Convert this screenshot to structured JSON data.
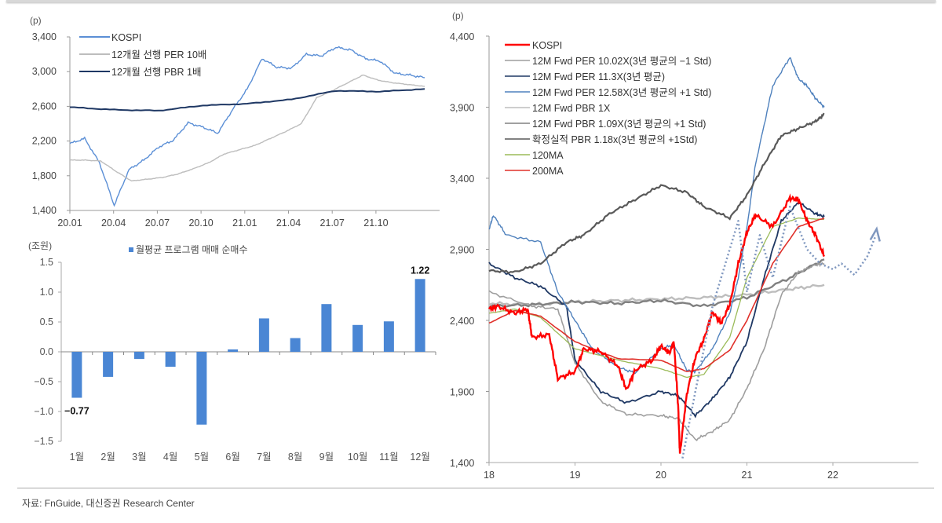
{
  "source": "자료: FnGuide, 대신증권 Research Center",
  "chart_data": [
    {
      "type": "line",
      "unit_label": "(p)",
      "title": "",
      "xlabel": "",
      "ylabel": "(p)",
      "ylim": [
        1400,
        3400
      ],
      "yticks": [
        "1,400",
        "1,800",
        "2,200",
        "2,600",
        "3,000",
        "3,400"
      ],
      "xticks": [
        "20.01",
        "20.04",
        "20.07",
        "20.10",
        "21.01",
        "21.04",
        "21.07",
        "21.10"
      ],
      "legend": [
        "KOSPI",
        "12개월 선행 PER 10배",
        "12개월 선행 PBR 1배"
      ],
      "legend_position": "upper-left",
      "series": [
        {
          "name": "KOSPI",
          "color": "#5b8fd6",
          "x": [
            "20.01",
            "20.02",
            "20.03",
            "20.03m",
            "20.04",
            "20.05",
            "20.06",
            "20.07",
            "20.08",
            "20.09",
            "20.10",
            "20.11",
            "20.12",
            "21.01",
            "21.02",
            "21.03",
            "21.04",
            "21.05",
            "21.06",
            "21.07",
            "21.08",
            "21.09",
            "21.10",
            "21.11",
            "21.12"
          ],
          "values": [
            2170,
            2230,
            1950,
            1460,
            1870,
            1980,
            2130,
            2210,
            2410,
            2360,
            2290,
            2560,
            2800,
            3150,
            3050,
            3040,
            3200,
            3180,
            3280,
            3250,
            3150,
            3120,
            2980,
            2960,
            2930
          ]
        },
        {
          "name": "12개월 선행 PER 10배",
          "color": "#bdbdbd",
          "x": [
            "20.01",
            "20.02",
            "20.03",
            "20.04",
            "20.05",
            "20.06",
            "20.07",
            "20.08",
            "20.09",
            "20.10",
            "20.11",
            "20.12",
            "21.01",
            "21.02",
            "21.03",
            "21.04",
            "21.05",
            "21.06",
            "21.07",
            "21.08",
            "21.09",
            "21.10",
            "21.11",
            "21.12"
          ],
          "values": [
            1980,
            1980,
            1970,
            1850,
            1740,
            1760,
            1780,
            1820,
            1880,
            1950,
            2050,
            2100,
            2150,
            2230,
            2310,
            2400,
            2700,
            2780,
            2870,
            2960,
            2900,
            2870,
            2850,
            2830
          ]
        },
        {
          "name": "12개월 선행 PBR 1배",
          "color": "#1f3864",
          "x": [
            "20.01",
            "20.04",
            "20.07",
            "20.10",
            "21.01",
            "21.04",
            "21.07",
            "21.10",
            "21.12"
          ],
          "values": [
            2590,
            2560,
            2550,
            2610,
            2630,
            2680,
            2780,
            2770,
            2800
          ]
        }
      ]
    },
    {
      "type": "bar",
      "unit_label": "(조원)",
      "title": "",
      "xlabel": "",
      "ylabel": "(조원)",
      "ylim": [
        -1.5,
        1.5
      ],
      "yticks": [
        "1.5",
        "1.0",
        "0.5",
        "0.0",
        "−0.5",
        "−1.0",
        "−1.5"
      ],
      "legend": [
        "월평균 프로그램 매매 순매수"
      ],
      "legend_position": "top",
      "categories": [
        "1월",
        "2월",
        "3월",
        "4월",
        "5월",
        "6월",
        "7월",
        "8월",
        "9월",
        "10월",
        "11월",
        "12월"
      ],
      "series": [
        {
          "name": "월평균 프로그램 매매 순매수",
          "color": "#4a86d4",
          "values": [
            -0.77,
            -0.42,
            -0.12,
            -0.25,
            -1.22,
            0.04,
            0.56,
            0.23,
            0.8,
            0.45,
            0.51,
            1.22
          ]
        }
      ],
      "annotations": [
        {
          "category": "1월",
          "text": "−0.77"
        },
        {
          "category": "12월",
          "text": "1.22"
        }
      ]
    },
    {
      "type": "line",
      "unit_label": "(p)",
      "title": "",
      "xlabel": "",
      "ylabel": "(p)",
      "ylim": [
        1400,
        4400
      ],
      "yticks": [
        "1,400",
        "1,900",
        "2,400",
        "2,900",
        "3,400",
        "3,900",
        "4,400"
      ],
      "xticks": [
        "18",
        "19",
        "20",
        "21",
        "22"
      ],
      "legend_position": "upper-left",
      "legend": [
        "KOSPI",
        "12M Fwd PER 10.02X(3년 평균의 −1 Std)",
        "12M Fwd PER 11.3X(3년 평균)",
        "12M Fwd PER 12.58X(3년 평균의 +1 Std)",
        "12M Fwd PBR 1X",
        "12M Fwd PBR 1.09X(3년 평균의 +1 Std)",
        "확정실적 PBR 1.18x(3년 평균의 +1Std)",
        "120MA",
        "200MA"
      ],
      "series": [
        {
          "name": "KOSPI",
          "color": "#ff0000",
          "x": [
            18.0,
            18.1,
            18.3,
            18.45,
            18.5,
            18.7,
            18.8,
            19.0,
            19.1,
            19.3,
            19.5,
            19.6,
            19.7,
            19.9,
            20.0,
            20.1,
            20.15,
            20.2,
            20.22,
            20.3,
            20.4,
            20.5,
            20.6,
            20.7,
            20.8,
            20.9,
            21.0,
            21.1,
            21.3,
            21.5,
            21.6,
            21.7,
            21.8,
            21.9
          ],
          "values": [
            2480,
            2500,
            2450,
            2480,
            2280,
            2300,
            1990,
            2040,
            2200,
            2180,
            2080,
            1910,
            2050,
            2120,
            2220,
            2170,
            2250,
            1800,
            1460,
            1880,
            2140,
            2270,
            2460,
            2380,
            2510,
            2800,
            3020,
            3140,
            3060,
            3260,
            3250,
            3100,
            3000,
            2850
          ]
        },
        {
          "name": "12M Fwd PER 10.02X(3년 평균의 −1 Std)",
          "color": "#9e9e9e",
          "x": [
            18.0,
            18.5,
            18.8,
            19.0,
            19.3,
            19.6,
            20.0,
            20.2,
            20.4,
            20.6,
            20.8,
            21.0,
            21.2,
            21.4,
            21.6,
            21.8,
            21.9
          ],
          "values": [
            2600,
            2500,
            2480,
            2100,
            1830,
            1740,
            1730,
            1710,
            1560,
            1620,
            1700,
            1920,
            2200,
            2580,
            2740,
            2790,
            2800
          ]
        },
        {
          "name": "12M Fwd PER 11.3X(3년 평균)",
          "color": "#1f3864",
          "x": [
            18.0,
            18.3,
            18.6,
            18.9,
            19.0,
            19.3,
            19.6,
            20.0,
            20.2,
            20.4,
            20.6,
            20.8,
            21.0,
            21.2,
            21.4,
            21.6,
            21.8,
            21.9
          ],
          "values": [
            2800,
            2700,
            2640,
            2500,
            2120,
            1900,
            1820,
            1900,
            1870,
            1730,
            1850,
            2000,
            2250,
            2700,
            3100,
            3230,
            3150,
            3130
          ]
        },
        {
          "name": "12M Fwd PER 12.58X(3년 평균의 +1 Std)",
          "color": "#4f81bd",
          "x": [
            18.0,
            18.05,
            18.2,
            18.6,
            18.8,
            19.0,
            19.2,
            19.5,
            19.7,
            20.0,
            20.15,
            20.3,
            20.4,
            20.6,
            20.8,
            20.9,
            21.0,
            21.1,
            21.3,
            21.5,
            21.6,
            21.7,
            21.8,
            21.9
          ],
          "values": [
            3040,
            3140,
            3000,
            2950,
            2600,
            2400,
            2200,
            2070,
            2030,
            2200,
            2230,
            2050,
            2040,
            2200,
            2450,
            2700,
            3050,
            3500,
            4050,
            4250,
            4100,
            4050,
            3960,
            3900
          ]
        },
        {
          "name": "12M Fwd PBR 1X",
          "color": "#bdbdbd",
          "x": [
            18.0,
            18.5,
            19.0,
            19.5,
            20.0,
            20.5,
            21.0,
            21.5,
            21.9
          ],
          "values": [
            2520,
            2510,
            2530,
            2540,
            2550,
            2560,
            2580,
            2620,
            2650
          ]
        },
        {
          "name": "12M Fwd PBR 1.09X(3년 평균의 +1 Std)",
          "color": "#808080",
          "x": [
            18.0,
            18.5,
            19.0,
            19.5,
            20.0,
            20.5,
            21.0,
            21.5,
            21.9
          ],
          "values": [
            2500,
            2510,
            2530,
            2520,
            2540,
            2500,
            2560,
            2700,
            2830
          ]
        },
        {
          "name": "확정실적 PBR 1.18x(3년 평균의 +1Std)",
          "color": "#595959",
          "x": [
            18.0,
            18.3,
            18.6,
            18.9,
            19.1,
            19.4,
            19.7,
            20.0,
            20.3,
            20.5,
            20.8,
            21.0,
            21.2,
            21.4,
            21.6,
            21.8,
            21.9
          ],
          "values": [
            2750,
            2740,
            2800,
            2950,
            3000,
            3150,
            3250,
            3350,
            3300,
            3200,
            3120,
            3280,
            3500,
            3700,
            3750,
            3800,
            3850
          ]
        },
        {
          "name": "120MA",
          "color": "#9bbb59",
          "x": [
            18.0,
            18.3,
            18.6,
            19.0,
            19.5,
            20.0,
            20.3,
            20.5,
            20.8,
            21.0,
            21.3,
            21.6,
            21.9
          ],
          "values": [
            2450,
            2480,
            2420,
            2200,
            2120,
            2060,
            2000,
            2020,
            2280,
            2700,
            3060,
            3120,
            3110
          ]
        },
        {
          "name": "200MA",
          "color": "#e0302a",
          "x": [
            18.0,
            18.3,
            18.6,
            19.0,
            19.5,
            20.0,
            20.3,
            20.5,
            20.8,
            21.0,
            21.3,
            21.6,
            21.9
          ],
          "values": [
            2380,
            2470,
            2430,
            2250,
            2130,
            2120,
            2040,
            2060,
            2190,
            2400,
            2800,
            3060,
            3120
          ]
        }
      ],
      "annotations": [
        {
          "type": "dotted-projection",
          "color": "#7f97bf",
          "text": "",
          "x": [
            20.25,
            20.4,
            20.6,
            20.9,
            21.0,
            21.15,
            21.3,
            21.5,
            21.7,
            21.85,
            22.0,
            22.1,
            22.25,
            22.4,
            22.5
          ],
          "values": [
            1430,
            1900,
            2500,
            3100,
            2600,
            3000,
            2700,
            3200,
            2900,
            2800,
            2760,
            2800,
            2720,
            2850,
            3000
          ]
        }
      ]
    }
  ]
}
